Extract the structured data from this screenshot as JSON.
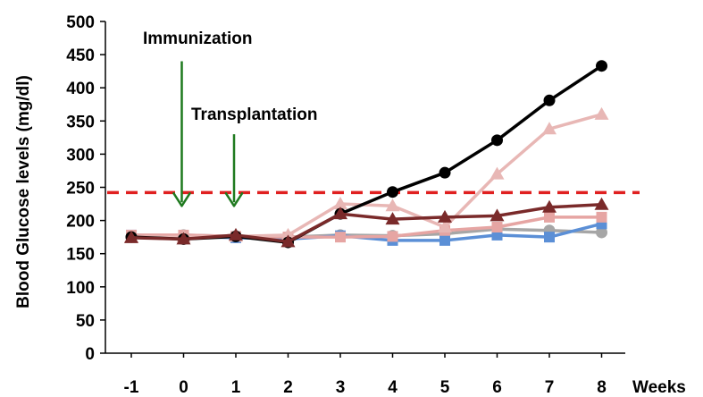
{
  "chart_data": {
    "type": "line",
    "title": "",
    "xlabel": "Weeks",
    "ylabel": "Blood Glucose levels (mg/dl)",
    "x": [
      -1,
      0,
      1,
      2,
      3,
      4,
      5,
      6,
      7,
      8
    ],
    "x_tick_labels": [
      "-1",
      "0",
      "1",
      "2",
      "3",
      "4",
      "5",
      "6",
      "7",
      "8"
    ],
    "ylim": [
      0,
      500
    ],
    "y_ticks": [
      0,
      50,
      100,
      150,
      200,
      250,
      300,
      350,
      400,
      450,
      500
    ],
    "grid": false,
    "legend": "none",
    "threshold": {
      "value": 242,
      "color": "#e02020",
      "style": "dashed"
    },
    "annotations": [
      {
        "text": "Immunization",
        "x": 0,
        "arrow_top": 440,
        "arrow_bottom": 222
      },
      {
        "text": "Transplantation",
        "x": 1,
        "arrow_top": 330,
        "arrow_bottom": 222
      }
    ],
    "series": [
      {
        "color": "#a6a6a6",
        "marker": "circle",
        "values": [
          175,
          178,
          176,
          175,
          178,
          177,
          180,
          187,
          185,
          182
        ]
      },
      {
        "color": "#5b8fd6",
        "marker": "square",
        "values": [
          178,
          176,
          174,
          172,
          177,
          170,
          170,
          178,
          175,
          195
        ]
      },
      {
        "color": "#e6a5a3",
        "marker": "square",
        "values": [
          178,
          178,
          176,
          175,
          175,
          176,
          185,
          190,
          205,
          205
        ]
      },
      {
        "color": "#e8b7b5",
        "marker": "triangle",
        "values": [
          175,
          175,
          176,
          178,
          225,
          222,
          190,
          270,
          338,
          360
        ]
      },
      {
        "color": "#000000",
        "marker": "circle",
        "values": [
          175,
          172,
          176,
          167,
          210,
          243,
          272,
          321,
          381,
          433
        ]
      },
      {
        "color": "#7a2a2a",
        "marker": "triangle",
        "values": [
          174,
          172,
          178,
          168,
          210,
          202,
          205,
          207,
          220,
          224
        ]
      }
    ]
  }
}
